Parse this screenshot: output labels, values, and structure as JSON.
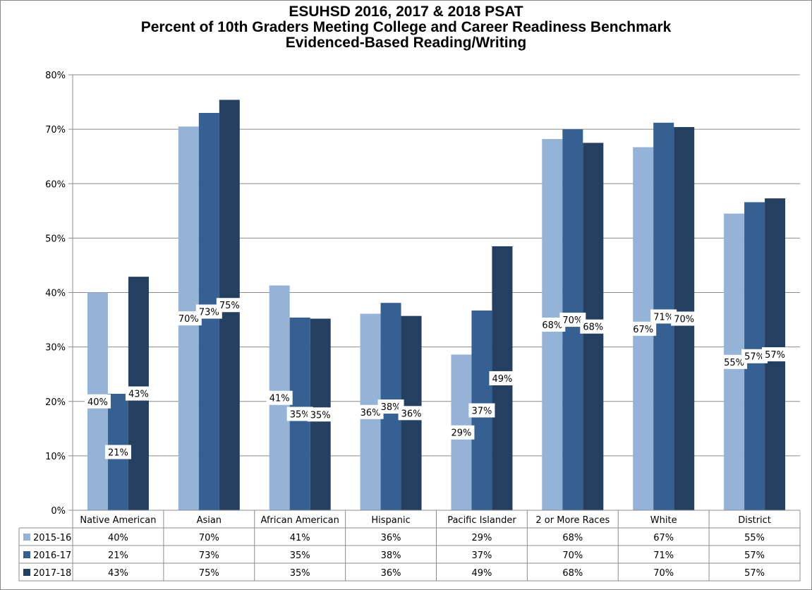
{
  "chart_data": {
    "type": "bar",
    "title": "ESUHSD 2016, 2017 & 2018 PSAT",
    "subtitle": "Percent of 10th Graders Meeting College and Career Readiness Benchmark",
    "subtitle2": "Evidenced-Based Reading/Writing",
    "xlabel": "",
    "ylabel": "",
    "ylim": [
      0,
      80
    ],
    "yticks": [
      "0%",
      "10%",
      "20%",
      "30%",
      "40%",
      "50%",
      "60%",
      "70%",
      "80%"
    ],
    "grid": true,
    "legend": "data-table",
    "categories": [
      "Native American",
      "Asian",
      "African American",
      "Hispanic",
      "Pacific Islander",
      "2 or More Races",
      "White",
      "District"
    ],
    "series": [
      {
        "name": "2015-16",
        "color": "#95b3d7",
        "values": [
          40,
          70.5,
          41.3,
          36.1,
          28.6,
          68.2,
          66.7,
          54.5
        ],
        "labels": [
          "40%",
          "70%",
          "41%",
          "36%",
          "29%",
          "68%",
          "67%",
          "55%"
        ]
      },
      {
        "name": "2016-17",
        "color": "#366092",
        "values": [
          21.4,
          73,
          35.4,
          38.1,
          36.7,
          70,
          71.2,
          56.6
        ],
        "labels": [
          "21%",
          "73%",
          "35%",
          "38%",
          "37%",
          "70%",
          "71%",
          "57%"
        ]
      },
      {
        "name": "2017-18",
        "color": "#243f60",
        "values": [
          42.9,
          75.4,
          35.2,
          35.7,
          48.5,
          67.5,
          70.4,
          57.3
        ],
        "labels": [
          "43%",
          "75%",
          "35%",
          "36%",
          "49%",
          "68%",
          "70%",
          "57%"
        ]
      }
    ]
  }
}
